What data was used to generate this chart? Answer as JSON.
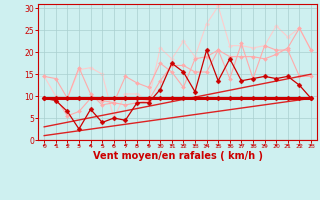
{
  "title": "",
  "xlabel": "Vent moyen/en rafales ( km/h )",
  "ylabel": "",
  "xlim": [
    -0.5,
    23.5
  ],
  "ylim": [
    0,
    31
  ],
  "xticks": [
    0,
    1,
    2,
    3,
    4,
    5,
    6,
    7,
    8,
    9,
    10,
    11,
    12,
    13,
    14,
    15,
    16,
    17,
    18,
    19,
    20,
    21,
    22,
    23
  ],
  "yticks": [
    0,
    5,
    10,
    15,
    20,
    25,
    30
  ],
  "bg_color": "#cef0f0",
  "grid_color": "#aacfcf",
  "lines": [
    {
      "x": [
        0,
        1,
        2,
        3,
        4,
        5,
        6,
        7,
        8,
        9,
        10,
        11,
        12,
        13,
        14,
        15,
        16,
        17,
        18,
        19,
        20,
        21,
        22,
        23
      ],
      "y": [
        9.5,
        9.5,
        9.5,
        9.5,
        9.5,
        9.5,
        9.5,
        9.5,
        9.5,
        9.5,
        9.5,
        9.5,
        9.5,
        9.5,
        9.5,
        9.5,
        9.5,
        9.5,
        9.5,
        9.5,
        9.5,
        9.5,
        9.5,
        9.5
      ],
      "color": "#cc0000",
      "lw": 2.2,
      "marker": "D",
      "ms": 2.5,
      "zorder": 5
    },
    {
      "x": [
        0,
        23
      ],
      "y": [
        1.0,
        9.5
      ],
      "color": "#dd2222",
      "lw": 1.0,
      "marker": null,
      "ms": 0,
      "zorder": 3
    },
    {
      "x": [
        0,
        23
      ],
      "y": [
        3.0,
        15.0
      ],
      "color": "#dd2222",
      "lw": 1.0,
      "marker": null,
      "ms": 0,
      "zorder": 3
    },
    {
      "x": [
        0,
        23
      ],
      "y": [
        9.5,
        9.5
      ],
      "color": "#ee5555",
      "lw": 0.8,
      "marker": null,
      "ms": 0,
      "zorder": 3
    },
    {
      "x": [
        0,
        1,
        2,
        3,
        4,
        5,
        6,
        7,
        8,
        9,
        10,
        11,
        12,
        13,
        14,
        15,
        16,
        17,
        18,
        19,
        20,
        21,
        22,
        23
      ],
      "y": [
        14.5,
        14.0,
        9.5,
        16.5,
        10.5,
        8.0,
        8.5,
        14.5,
        13.0,
        12.0,
        17.5,
        15.5,
        12.0,
        18.5,
        19.0,
        20.5,
        14.0,
        22.0,
        14.0,
        21.5,
        20.5,
        20.5,
        14.5,
        14.5
      ],
      "color": "#ffaaaa",
      "lw": 0.8,
      "marker": "D",
      "ms": 2.0,
      "zorder": 2
    },
    {
      "x": [
        0,
        1,
        2,
        3,
        4,
        5,
        6,
        7,
        8,
        9,
        10,
        11,
        12,
        13,
        14,
        15,
        16,
        17,
        18,
        19,
        20,
        21,
        22,
        23
      ],
      "y": [
        9.5,
        9.0,
        6.5,
        2.5,
        7.0,
        4.0,
        5.0,
        4.5,
        8.5,
        8.5,
        11.5,
        17.5,
        15.5,
        11.0,
        20.5,
        13.5,
        18.5,
        13.5,
        14.0,
        14.5,
        14.0,
        14.5,
        12.5,
        9.5
      ],
      "color": "#cc0000",
      "lw": 0.9,
      "marker": "D",
      "ms": 2.5,
      "zorder": 4
    },
    {
      "x": [
        0,
        1,
        2,
        3,
        4,
        5,
        6,
        7,
        8,
        9,
        10,
        11,
        12,
        13,
        14,
        15,
        16,
        17,
        18,
        19,
        20,
        21,
        22,
        23
      ],
      "y": [
        9.5,
        9.5,
        5.5,
        6.5,
        9.5,
        9.0,
        8.5,
        8.0,
        8.5,
        9.0,
        13.5,
        17.0,
        17.0,
        15.5,
        15.5,
        20.5,
        19.0,
        19.0,
        19.0,
        18.5,
        19.5,
        21.0,
        25.5,
        20.5
      ],
      "color": "#ffaaaa",
      "lw": 0.8,
      "marker": "D",
      "ms": 2.0,
      "zorder": 2
    },
    {
      "x": [
        0,
        1,
        2,
        3,
        4,
        5,
        6,
        7,
        8,
        9,
        10,
        11,
        12,
        13,
        14,
        15,
        16,
        17,
        18,
        19,
        20,
        21,
        22,
        23
      ],
      "y": [
        14.5,
        10.0,
        9.5,
        16.0,
        16.5,
        15.0,
        5.0,
        10.5,
        10.5,
        9.0,
        21.0,
        18.5,
        22.5,
        19.0,
        26.5,
        30.5,
        21.5,
        21.5,
        21.0,
        21.5,
        26.0,
        23.5,
        25.5,
        20.5
      ],
      "color": "#ffcccc",
      "lw": 0.8,
      "marker": "D",
      "ms": 2.0,
      "zorder": 1
    }
  ],
  "axis_color": "#cc0000",
  "tick_color": "#cc0000",
  "label_color": "#cc0000",
  "xlabel_fontsize": 7,
  "xlabel_fontweight": "bold",
  "ytick_fontsize": 5.5,
  "xtick_fontsize": 4.5
}
